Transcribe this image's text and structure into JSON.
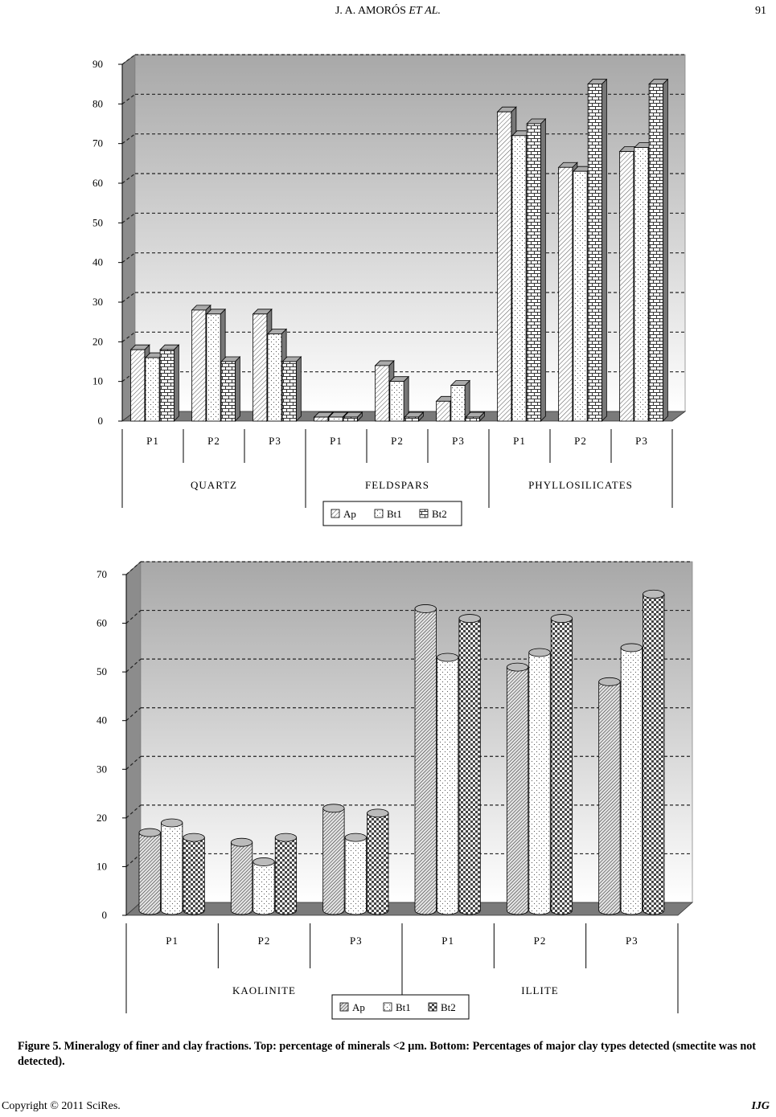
{
  "header": {
    "running_head_prefix": "J. A. AMORÓS",
    "running_head_et": "ET",
    "running_head_al": "AL.",
    "page_number": "91"
  },
  "caption": "Figure 5. Mineralogy of finer and clay fractions. Top: percentage of minerals <2 µm. Bottom: Percentages of major clay types detected (smectite was not detected).",
  "footer": {
    "copyright": "Copyright © 2011 SciRes.",
    "journal": "IJG"
  },
  "colors": {
    "plot_gradient_top": "#a8a8a8",
    "plot_gradient_bottom": "#ffffff",
    "floor": "#7a7a7a",
    "side_wall": "#8c8c8c",
    "gridline": "#222222"
  },
  "chart_data": [
    {
      "type": "bar",
      "style": "3d-box",
      "title": "",
      "xlabel": "",
      "ylabel": "",
      "ylim": [
        0,
        90
      ],
      "yticks": [
        0,
        10,
        20,
        30,
        40,
        50,
        60,
        70,
        80,
        90
      ],
      "grid": true,
      "legend_position": "bottom-center",
      "groups": [
        "QUARTZ",
        "FELDSPARS",
        "PHYLLOSILICATES"
      ],
      "categories": [
        "P1",
        "P2",
        "P3",
        "P1",
        "P2",
        "P3",
        "P1",
        "P2",
        "P3"
      ],
      "series": [
        {
          "name": "Ap",
          "pattern": "diagonal",
          "values": [
            18,
            28,
            27,
            1,
            14,
            5,
            78,
            64,
            68
          ]
        },
        {
          "name": "Bt1",
          "pattern": "dots",
          "values": [
            16,
            27,
            22,
            1,
            10,
            9,
            72,
            63,
            69
          ]
        },
        {
          "name": "Bt2",
          "pattern": "brick",
          "values": [
            18,
            15,
            15,
            1,
            1,
            1,
            75,
            85,
            85
          ]
        }
      ]
    },
    {
      "type": "bar",
      "style": "3d-cylinder",
      "title": "",
      "xlabel": "",
      "ylabel": "",
      "ylim": [
        0,
        70
      ],
      "yticks": [
        0,
        10,
        20,
        30,
        40,
        50,
        60,
        70
      ],
      "grid": true,
      "legend_position": "bottom-center",
      "groups": [
        "KAOLINITE",
        "ILLITE"
      ],
      "categories": [
        "P1",
        "P2",
        "P3",
        "P1",
        "P2",
        "P3"
      ],
      "series": [
        {
          "name": "Ap",
          "pattern": "hatch",
          "values": [
            16,
            14,
            21,
            62,
            50,
            47
          ]
        },
        {
          "name": "Bt1",
          "pattern": "dots",
          "values": [
            18,
            10,
            15,
            52,
            53,
            54
          ]
        },
        {
          "name": "Bt2",
          "pattern": "checker",
          "values": [
            15,
            15,
            20,
            60,
            60,
            65
          ]
        }
      ]
    }
  ]
}
